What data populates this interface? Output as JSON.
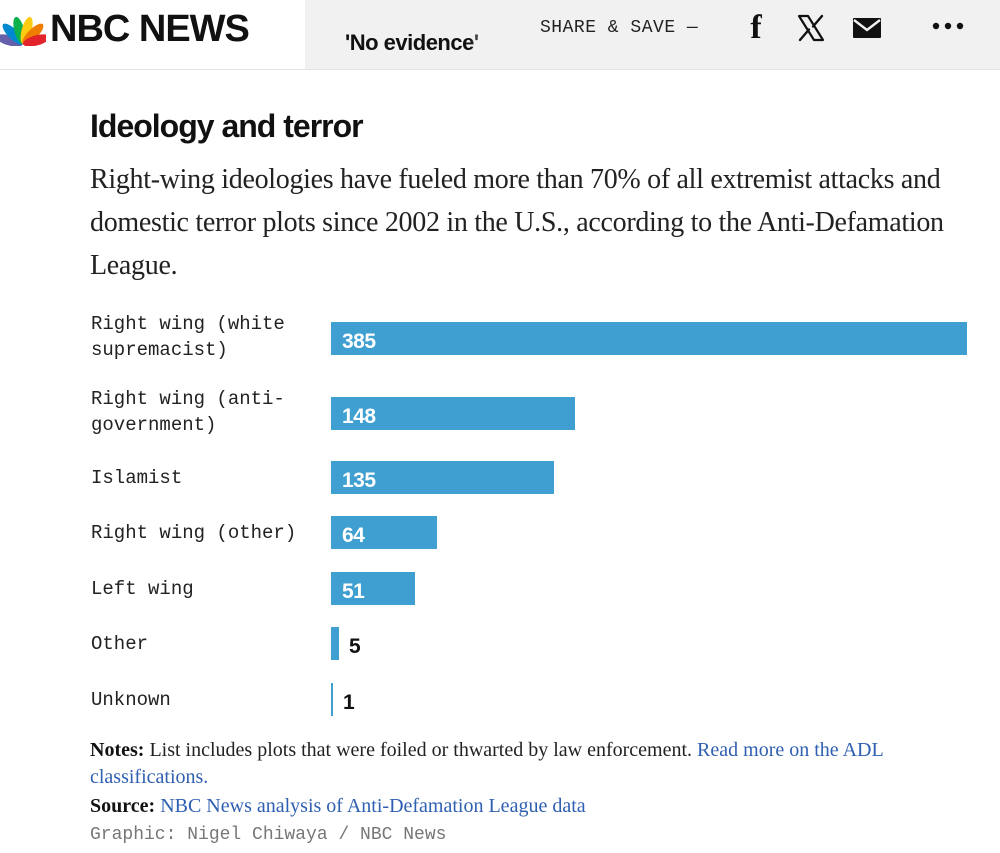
{
  "header": {
    "brand": "NBC NEWS",
    "teaser": "'No evidence'",
    "share_label": "SHARE & SAVE —",
    "more_label": "•••"
  },
  "article": {
    "title": "Ideology and terror",
    "dek": "Right-wing ideologies have fueled more than 70% of all extremist attacks and domestic terror plots since 2002 in the U.S., according to the Anti-Defamation League."
  },
  "chart_data": {
    "type": "bar",
    "orientation": "horizontal",
    "title": "Ideology and terror",
    "categories": [
      "Right wing (white supremacist)",
      "Right wing (anti-government)",
      "Islamist",
      "Right wing (other)",
      "Left wing",
      "Other",
      "Unknown"
    ],
    "category_display": [
      "Right wing (white\nsupremacist)",
      "Right wing (anti-\ngovernment)",
      "Islamist",
      "Right wing (other)",
      "Left wing",
      "Other",
      "Unknown"
    ],
    "values": [
      385,
      148,
      135,
      64,
      51,
      5,
      1
    ],
    "xlim": [
      0,
      385
    ],
    "bar_color": "#3f9fd0",
    "grid": false,
    "legend": "none"
  },
  "footer": {
    "notes_label": "Notes:",
    "notes_text": " List includes plots that were foiled or thwarted by law enforcement. ",
    "notes_link": "Read more on the ADL classifications.",
    "source_label": "Source:",
    "source_link": "NBC News analysis of Anti-Defamation League data",
    "credit": "Graphic: Nigel Chiwaya / NBC News"
  },
  "colors": {
    "link": "#2f5fb0",
    "bar": "#3f9fd0"
  }
}
